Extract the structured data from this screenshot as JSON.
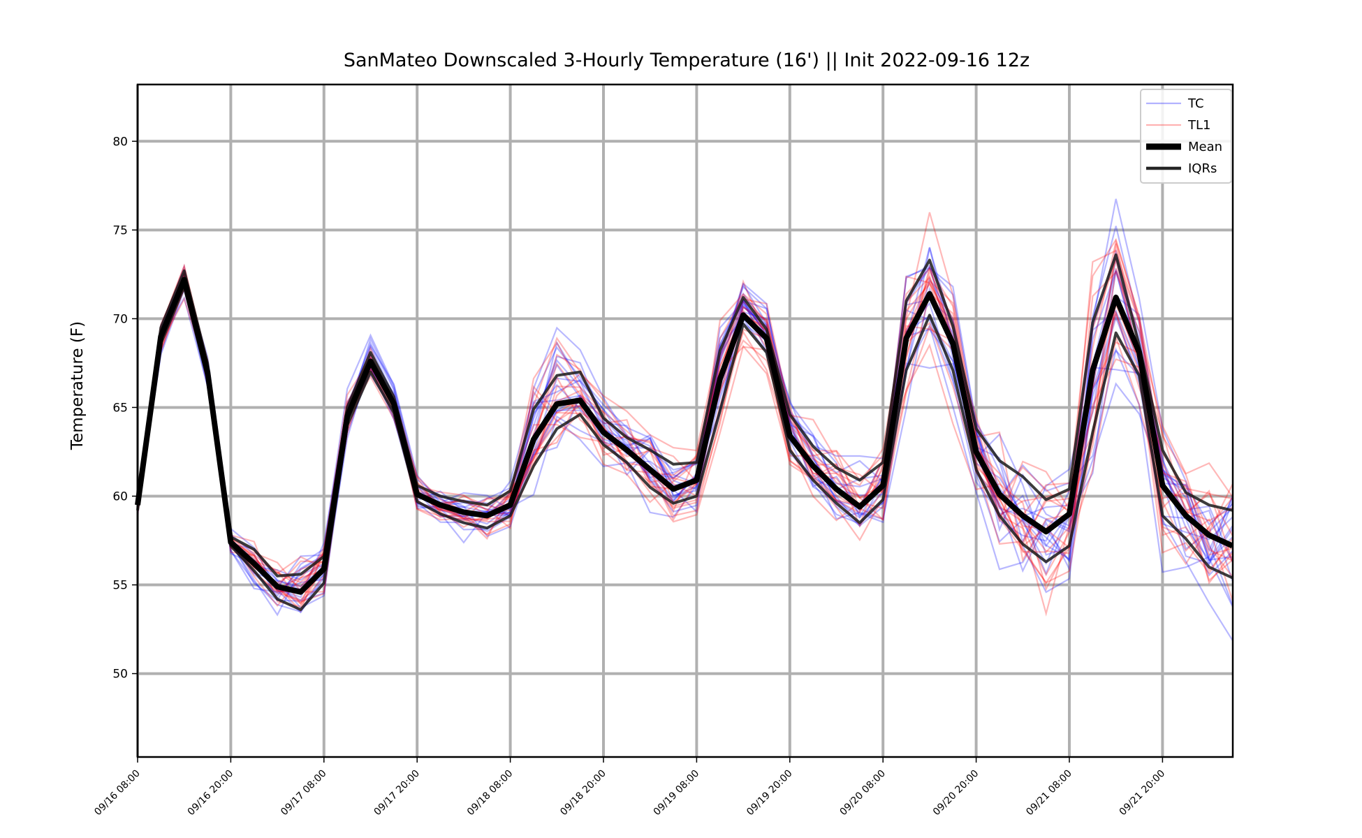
{
  "chart_data": {
    "type": "line",
    "title": "SanMateo Downscaled 3-Hourly Temperature (16') || Init 2022-09-16 12z",
    "xlabel": "",
    "ylabel": "Temperature (F)",
    "ylim": [
      45.3,
      83.2
    ],
    "yticks": [
      50,
      55,
      60,
      65,
      70,
      75,
      80
    ],
    "ytick_labels": [
      "50",
      "55",
      "60",
      "65",
      "70",
      "75",
      "80"
    ],
    "x_start": "2022-09-16 08:00",
    "x_end": "2022-09-21 20:00 +9h",
    "x_step_hours": 3,
    "xticks": [
      "09/16 08:00",
      "09/16 20:00",
      "09/17 08:00",
      "09/17 20:00",
      "09/18 08:00",
      "09/18 20:00",
      "09/19 08:00",
      "09/19 20:00",
      "09/20 08:00",
      "09/20 20:00",
      "09/21 08:00",
      "09/21 20:00"
    ],
    "grid": true,
    "legend_position": "upper-right",
    "legend": [
      {
        "label": "TC",
        "color": "#0000ff",
        "style": "thin-transparent"
      },
      {
        "label": "TL1",
        "color": "#ff0000",
        "style": "thin-transparent"
      },
      {
        "label": "Mean",
        "color": "#000000",
        "style": "thick"
      },
      {
        "label": "IQRs",
        "color": "#000000",
        "style": "medium-dark"
      }
    ],
    "colors": {
      "TC": "#0000ff",
      "TL1": "#ff0000",
      "mean": "#000000",
      "iqr": "#1a1a1a",
      "grid": "#b0b0b0"
    },
    "mean": [
      59.5,
      69.0,
      72.2,
      67.0,
      57.4,
      56.2,
      54.9,
      54.6,
      55.9,
      64.5,
      67.6,
      65.2,
      60.1,
      59.5,
      59.1,
      58.9,
      59.5,
      63.2,
      65.2,
      65.4,
      63.6,
      62.6,
      61.5,
      60.4,
      60.9,
      66.6,
      70.2,
      68.9,
      63.4,
      61.7,
      60.4,
      59.4,
      60.6,
      68.9,
      71.4,
      68.6,
      62.5,
      60.1,
      58.9,
      58.0,
      59.0,
      67.1,
      71.2,
      68.1,
      60.6,
      58.9,
      57.8,
      57.2
    ],
    "iqr_upper": [
      59.8,
      69.5,
      72.7,
      67.5,
      57.7,
      57.0,
      55.5,
      55.6,
      56.6,
      65.0,
      68.1,
      65.6,
      60.6,
      60.0,
      59.7,
      59.5,
      60.3,
      64.9,
      66.8,
      67.0,
      64.4,
      63.3,
      62.6,
      61.8,
      61.9,
      68.2,
      71.2,
      69.4,
      64.6,
      62.8,
      61.6,
      60.9,
      61.9,
      71.0,
      73.3,
      69.6,
      63.8,
      62.0,
      61.1,
      59.8,
      60.4,
      69.8,
      73.6,
      68.5,
      62.6,
      60.2,
      59.5,
      59.2
    ],
    "iqr_lower": [
      59.2,
      68.6,
      71.8,
      66.6,
      57.2,
      55.8,
      54.2,
      53.6,
      55.1,
      64.0,
      67.0,
      64.7,
      59.7,
      59.0,
      58.5,
      58.2,
      58.9,
      61.7,
      63.8,
      64.6,
      62.9,
      61.9,
      60.5,
      59.6,
      60.0,
      64.8,
      69.7,
      68.1,
      62.6,
      60.9,
      59.6,
      58.5,
      59.8,
      67.1,
      70.2,
      67.1,
      61.5,
      58.9,
      57.3,
      56.3,
      57.2,
      63.6,
      69.2,
      66.8,
      58.9,
      57.6,
      56.0,
      55.4
    ],
    "member_count_tc": 16,
    "member_count_tl1": 16
  }
}
